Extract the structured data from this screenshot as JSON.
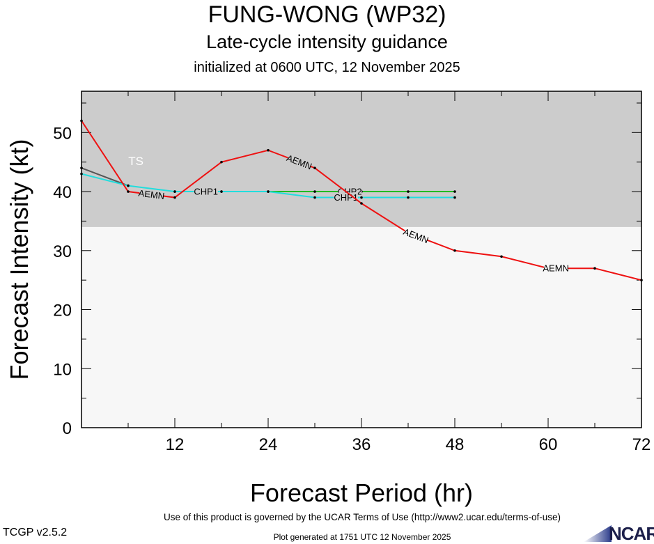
{
  "header": {
    "title": "FUNG-WONG (WP32)",
    "subtitle": "Late-cycle intensity guidance",
    "initialized": "initialized at 0600 UTC, 12 November 2025"
  },
  "footer": {
    "terms": "Use of this product is governed by the UCAR Terms of Use (http://www2.ucar.edu/terms-of-use)",
    "version": "TCGP v2.5.2",
    "generated": "Plot generated at 1751 UTC   12 November 2025",
    "logo_text": "NCAR"
  },
  "chart_data": {
    "type": "line",
    "xlabel": "Forecast Period (hr)",
    "ylabel": "Forecast Intensity (kt)",
    "xlim": [
      0,
      72
    ],
    "ylim": [
      0,
      57
    ],
    "xticks": [
      12,
      24,
      36,
      48,
      60,
      72
    ],
    "yticks": [
      0,
      10,
      20,
      30,
      40,
      50
    ],
    "band": {
      "label": "TS",
      "from": 34,
      "to": 57,
      "color": "#cccccc"
    },
    "background_color": "#f7f7f7",
    "series": [
      {
        "name": "AEMN",
        "color": "#ee1111",
        "x": [
          0,
          6,
          12,
          18,
          24,
          30,
          36,
          42,
          48,
          54,
          60,
          66,
          72
        ],
        "y": [
          52,
          40,
          39,
          45,
          47,
          44,
          38,
          33,
          30,
          29,
          27,
          27,
          25
        ],
        "label_at": [
          9,
          28,
          43,
          61
        ]
      },
      {
        "name": "CHP2",
        "color": "#22bb22",
        "x": [
          12,
          18,
          24,
          30,
          36,
          42,
          48
        ],
        "y": [
          40,
          40,
          40,
          40,
          40,
          40,
          40
        ],
        "label_at": [
          16,
          34.5
        ]
      },
      {
        "name": "CHP1",
        "color": "#22dddd",
        "x": [
          0,
          6,
          12,
          18,
          24,
          30,
          36,
          42,
          48
        ],
        "y": [
          43,
          41,
          40,
          40,
          40,
          39,
          39,
          39,
          39
        ],
        "label_at": [
          16,
          34
        ]
      },
      {
        "name": "",
        "color": "#555555",
        "x": [
          0,
          6
        ],
        "y": [
          44,
          41
        ],
        "label_at": []
      }
    ]
  }
}
